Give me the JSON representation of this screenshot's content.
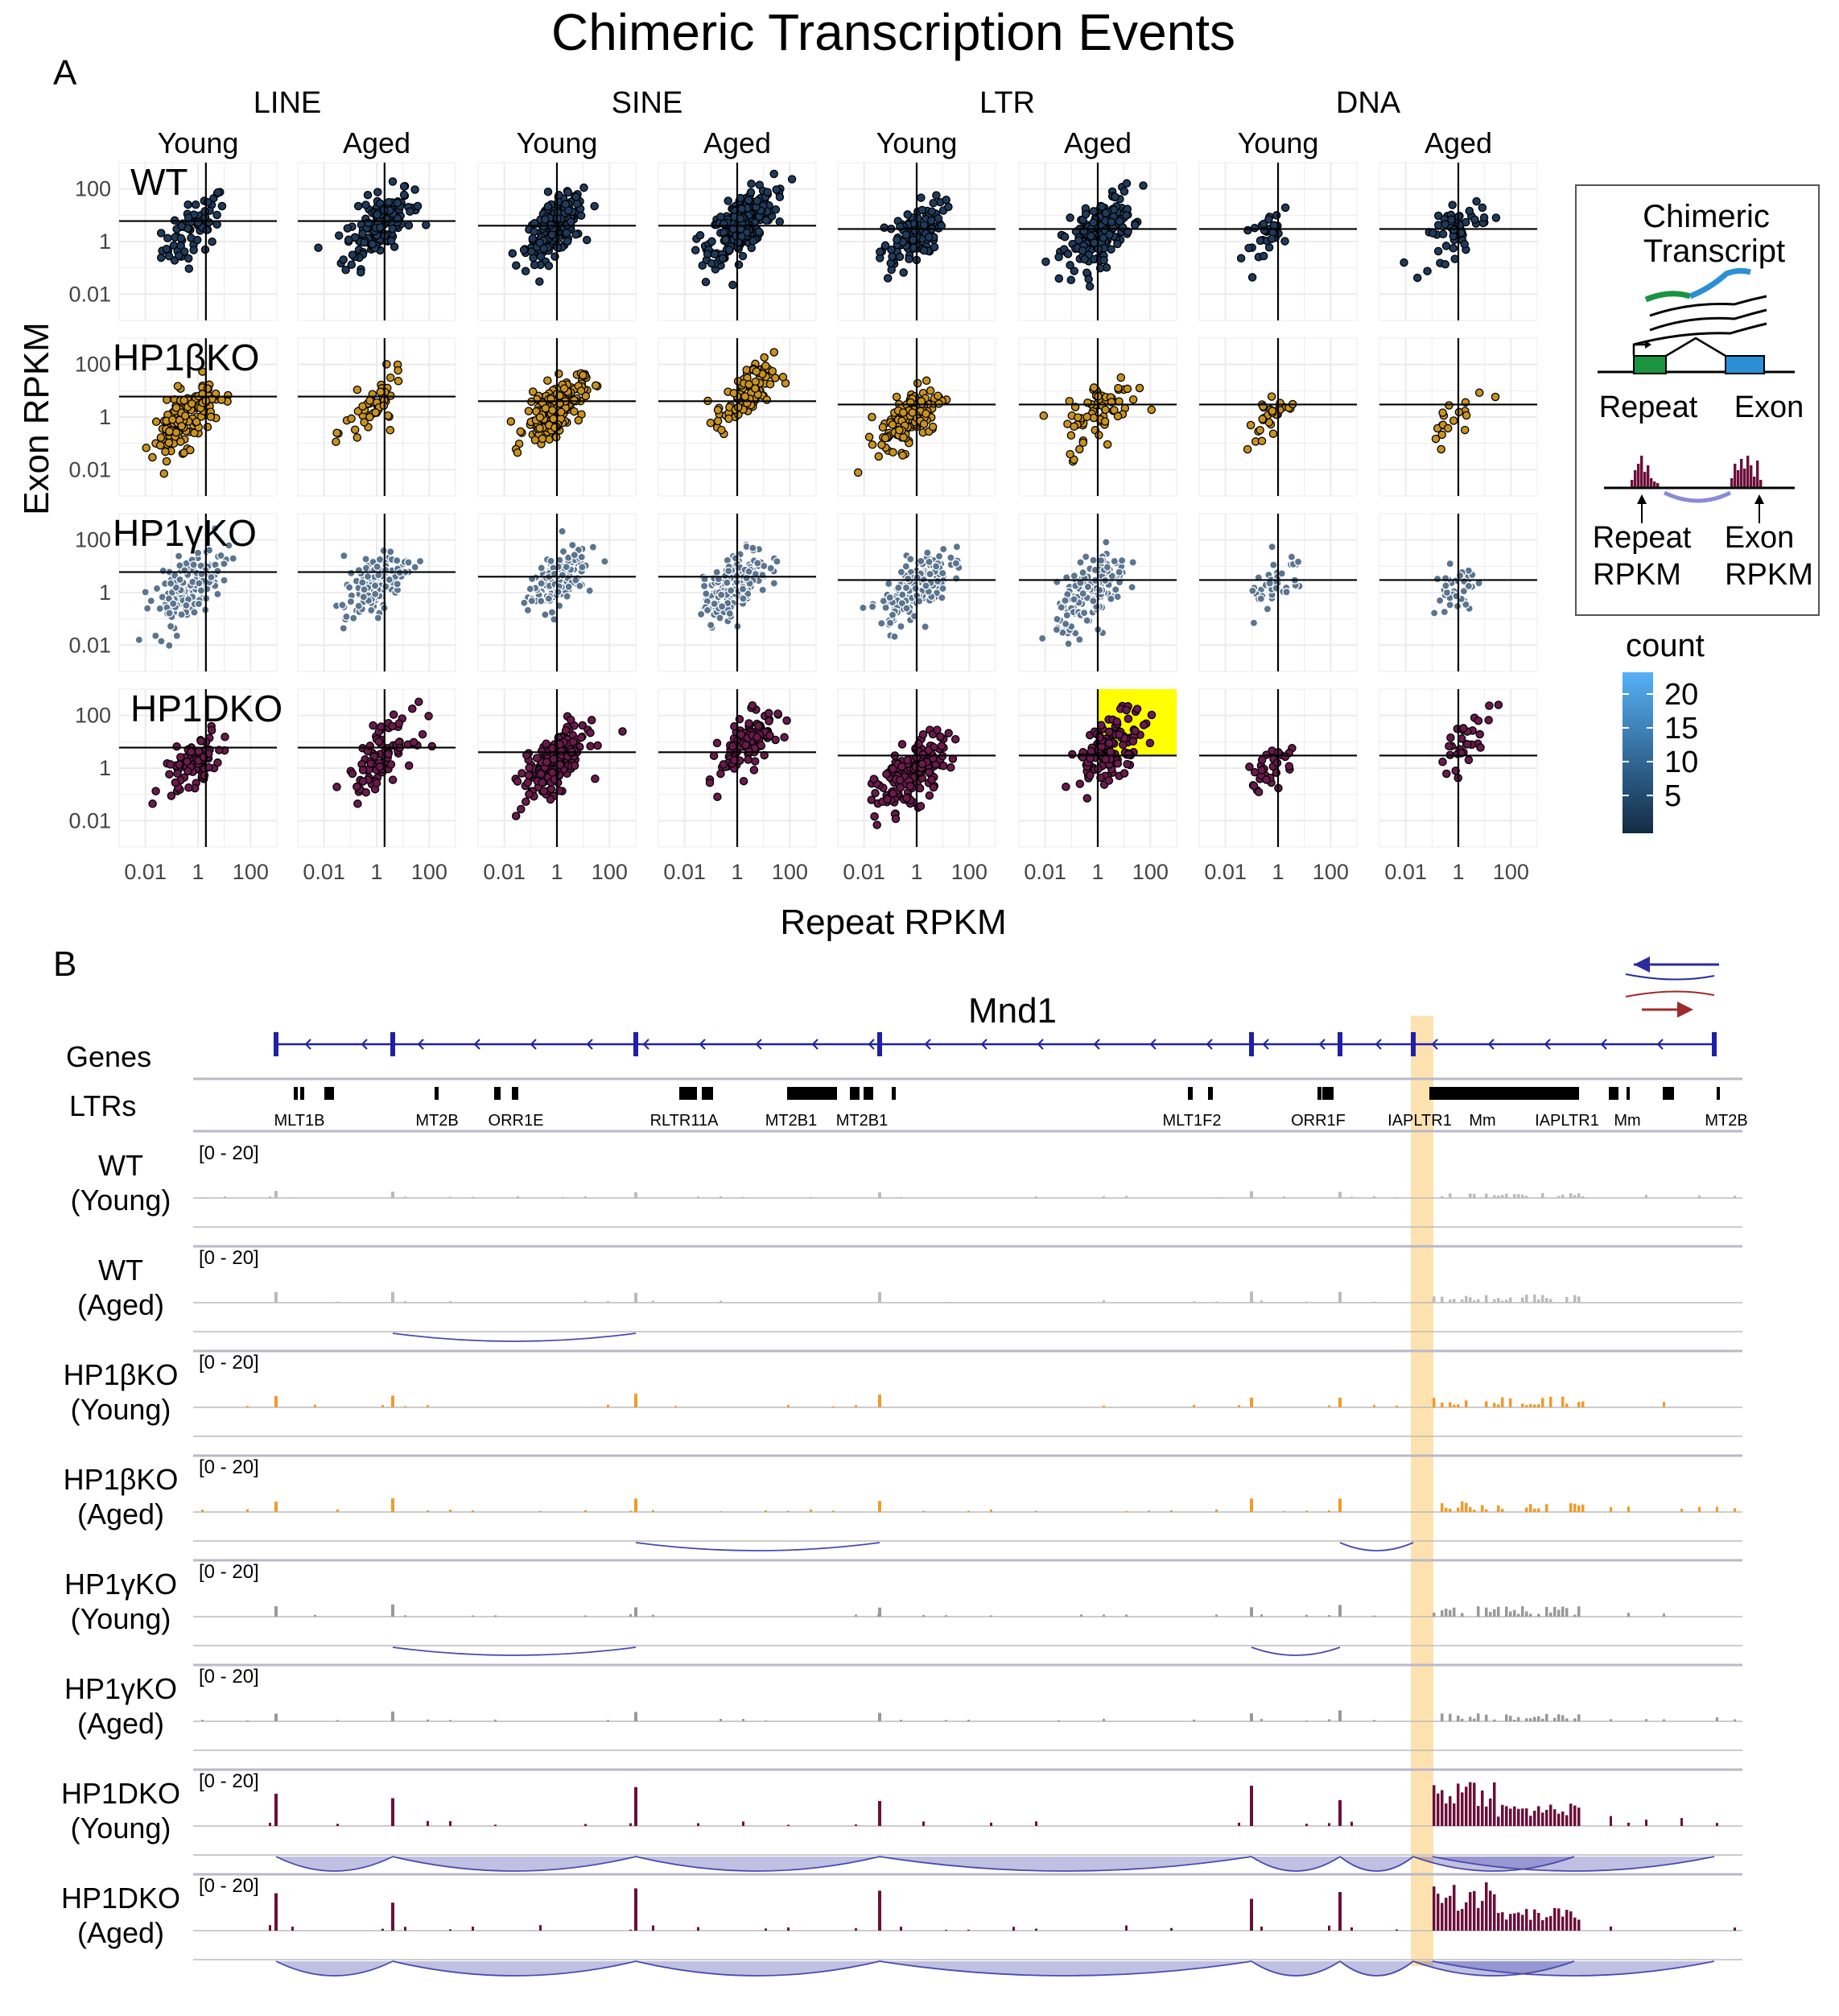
{
  "title": "Chimeric Transcription Events",
  "panel_a": {
    "label": "A",
    "ylabel": "Exon RPKM",
    "xlabel": "Repeat RPKM",
    "repeat_classes": [
      "LINE",
      "SINE",
      "LTR",
      "DNA"
    ],
    "ages": [
      "Young",
      "Aged"
    ],
    "genotypes": [
      "WT",
      "HP1βKO",
      "HP1γKO",
      "HP1DKO"
    ],
    "axis_ticks": [
      "0.01",
      "1",
      "100"
    ],
    "legend": {
      "title": "count",
      "ticks": [
        "20",
        "15",
        "10",
        "5"
      ]
    },
    "inset": {
      "title_line1": "Chimeric",
      "title_line2": "Transcript",
      "repeat_label": "Repeat",
      "exon_label": "Exon",
      "repeat_rpkm_line1": "Repeat",
      "repeat_rpkm_line2": "RPKM",
      "exon_rpkm_line1": "Exon",
      "exon_rpkm_line2": "RPKM"
    },
    "highlight": {
      "genotype": "HP1DKO",
      "class": "LTR",
      "age": "Aged",
      "color": "#ffff00"
    }
  },
  "chart_data": {
    "type": "scatter",
    "x_scale": "log10",
    "y_scale": "log10",
    "xlim": [
      0.001,
      1000
    ],
    "ylim": [
      0.001,
      1000
    ],
    "facets": [
      {
        "genotype": "WT",
        "class": "LINE",
        "age": "Young",
        "n": 70,
        "cx": 0.7,
        "cy": 3,
        "spread": 0.55,
        "hline": 6,
        "vline": 2
      },
      {
        "genotype": "WT",
        "class": "LINE",
        "age": "Aged",
        "n": 150,
        "cx": 1.2,
        "cy": 4,
        "spread": 0.6,
        "hline": 6,
        "vline": 2
      },
      {
        "genotype": "WT",
        "class": "SINE",
        "age": "Young",
        "n": 220,
        "cx": 0.8,
        "cy": 3,
        "spread": 0.5,
        "hline": 4,
        "vline": 1
      },
      {
        "genotype": "WT",
        "class": "SINE",
        "age": "Aged",
        "n": 280,
        "cx": 1.5,
        "cy": 5,
        "spread": 0.55,
        "hline": 4,
        "vline": 1
      },
      {
        "genotype": "WT",
        "class": "LTR",
        "age": "Young",
        "n": 110,
        "cx": 0.6,
        "cy": 1.5,
        "spread": 0.55,
        "hline": 3,
        "vline": 1
      },
      {
        "genotype": "WT",
        "class": "LTR",
        "age": "Aged",
        "n": 200,
        "cx": 1,
        "cy": 2,
        "spread": 0.6,
        "hline": 3,
        "vline": 1
      },
      {
        "genotype": "WT",
        "class": "DNA",
        "age": "Young",
        "n": 30,
        "cx": 0.5,
        "cy": 2,
        "spread": 0.45,
        "hline": 3,
        "vline": 1
      },
      {
        "genotype": "WT",
        "class": "DNA",
        "age": "Aged",
        "n": 50,
        "cx": 1,
        "cy": 3,
        "spread": 0.5,
        "hline": 3,
        "vline": 1
      },
      {
        "genotype": "HP1βKO",
        "class": "LINE",
        "age": "Young",
        "n": 150,
        "cx": 0.3,
        "cy": 0.8,
        "spread": 0.55,
        "hline": 6,
        "vline": 2
      },
      {
        "genotype": "HP1βKO",
        "class": "LINE",
        "age": "Aged",
        "n": 50,
        "cx": 0.8,
        "cy": 2,
        "spread": 0.5,
        "hline": 6,
        "vline": 2
      },
      {
        "genotype": "HP1βKO",
        "class": "SINE",
        "age": "Young",
        "n": 200,
        "cx": 0.8,
        "cy": 2,
        "spread": 0.5,
        "hline": 4,
        "vline": 1
      },
      {
        "genotype": "HP1βKO",
        "class": "SINE",
        "age": "Aged",
        "n": 100,
        "cx": 2,
        "cy": 6,
        "spread": 0.5,
        "hline": 4,
        "vline": 1
      },
      {
        "genotype": "HP1βKO",
        "class": "LTR",
        "age": "Young",
        "n": 130,
        "cx": 0.6,
        "cy": 1,
        "spread": 0.55,
        "hline": 3,
        "vline": 1
      },
      {
        "genotype": "HP1βKO",
        "class": "LTR",
        "age": "Aged",
        "n": 70,
        "cx": 1.5,
        "cy": 2,
        "spread": 0.6,
        "hline": 3,
        "vline": 1
      },
      {
        "genotype": "HP1βKO",
        "class": "DNA",
        "age": "Young",
        "n": 30,
        "cx": 0.5,
        "cy": 1,
        "spread": 0.45,
        "hline": 3,
        "vline": 1
      },
      {
        "genotype": "HP1βKO",
        "class": "DNA",
        "age": "Aged",
        "n": 18,
        "cx": 0.8,
        "cy": 1.5,
        "spread": 0.5,
        "hline": 3,
        "vline": 1
      },
      {
        "genotype": "HP1γKO",
        "class": "LINE",
        "age": "Young",
        "n": 160,
        "cx": 0.4,
        "cy": 1.5,
        "spread": 0.6,
        "hline": 6,
        "vline": 2
      },
      {
        "genotype": "HP1γKO",
        "class": "LINE",
        "age": "Aged",
        "n": 130,
        "cx": 0.9,
        "cy": 2,
        "spread": 0.55,
        "hline": 6,
        "vline": 2
      },
      {
        "genotype": "HP1γKO",
        "class": "SINE",
        "age": "Young",
        "n": 170,
        "cx": 1,
        "cy": 3,
        "spread": 0.5,
        "hline": 4,
        "vline": 1
      },
      {
        "genotype": "HP1γKO",
        "class": "SINE",
        "age": "Aged",
        "n": 200,
        "cx": 0.9,
        "cy": 2,
        "spread": 0.55,
        "hline": 4,
        "vline": 1
      },
      {
        "genotype": "HP1γKO",
        "class": "LTR",
        "age": "Young",
        "n": 160,
        "cx": 0.8,
        "cy": 1.5,
        "spread": 0.6,
        "hline": 3,
        "vline": 1
      },
      {
        "genotype": "HP1γKO",
        "class": "LTR",
        "age": "Aged",
        "n": 160,
        "cx": 0.6,
        "cy": 1,
        "spread": 0.6,
        "hline": 3,
        "vline": 1
      },
      {
        "genotype": "HP1γKO",
        "class": "DNA",
        "age": "Young",
        "n": 40,
        "cx": 1,
        "cy": 2,
        "spread": 0.5,
        "hline": 3,
        "vline": 1
      },
      {
        "genotype": "HP1γKO",
        "class": "DNA",
        "age": "Aged",
        "n": 40,
        "cx": 0.8,
        "cy": 1,
        "spread": 0.5,
        "hline": 3,
        "vline": 1
      },
      {
        "genotype": "HP1DKO",
        "class": "LINE",
        "age": "Young",
        "n": 80,
        "cx": 0.6,
        "cy": 1.5,
        "spread": 0.5,
        "hline": 6,
        "vline": 2
      },
      {
        "genotype": "HP1DKO",
        "class": "LINE",
        "age": "Aged",
        "n": 90,
        "cx": 1.5,
        "cy": 3,
        "spread": 0.55,
        "hline": 6,
        "vline": 2
      },
      {
        "genotype": "HP1DKO",
        "class": "SINE",
        "age": "Young",
        "n": 210,
        "cx": 0.8,
        "cy": 1.5,
        "spread": 0.55,
        "hline": 4,
        "vline": 1
      },
      {
        "genotype": "HP1DKO",
        "class": "SINE",
        "age": "Aged",
        "n": 120,
        "cx": 3,
        "cy": 10,
        "spread": 0.5,
        "hline": 4,
        "vline": 1
      },
      {
        "genotype": "HP1DKO",
        "class": "LTR",
        "age": "Young",
        "n": 170,
        "cx": 0.6,
        "cy": 0.5,
        "spread": 0.6,
        "hline": 3,
        "vline": 1
      },
      {
        "genotype": "HP1DKO",
        "class": "LTR",
        "age": "Aged",
        "n": 130,
        "cx": 3,
        "cy": 6,
        "spread": 0.6,
        "hline": 3,
        "vline": 1
      },
      {
        "genotype": "HP1DKO",
        "class": "DNA",
        "age": "Young",
        "n": 30,
        "cx": 0.5,
        "cy": 1,
        "spread": 0.45,
        "hline": 3,
        "vline": 1
      },
      {
        "genotype": "HP1DKO",
        "class": "DNA",
        "age": "Aged",
        "n": 30,
        "cx": 2,
        "cy": 10,
        "spread": 0.45,
        "hline": 3,
        "vline": 1
      }
    ],
    "colors": {
      "WT": {
        "fill": "#1f3b5c",
        "stroke": "#000000"
      },
      "HP1βKO": {
        "fill": "#c8921e",
        "stroke": "#000000"
      },
      "HP1γKO": {
        "fill": "#5b7590",
        "stroke": "#ffffff"
      },
      "HP1DKO": {
        "fill": "#6b1a4d",
        "stroke": "#000000"
      }
    }
  },
  "panel_b": {
    "label": "B",
    "gene_name": "Mnd1",
    "genes_label": "Genes",
    "ltrs_label": "LTRs",
    "ltr_names": [
      "MLT1B",
      "MT2B",
      "ORR1E",
      "RLTR11A",
      "MT2B1",
      "MT2B1",
      "MLT1F2",
      "ORR1F",
      "IAPLTR1",
      "Mm",
      "IAPLTR1",
      "Mm",
      "MT2B"
    ],
    "scale_label": "[0 - 20]",
    "tracks": [
      {
        "line1": "WT",
        "line2": "(Young)",
        "color": "#bbbbbb",
        "level": 0.08
      },
      {
        "line1": "WT",
        "line2": "(Aged)",
        "color": "#bbbbbb",
        "level": 0.15
      },
      {
        "line1": "HP1βKO",
        "line2": "(Young)",
        "color": "#f29a2a",
        "level": 0.2
      },
      {
        "line1": "HP1βKO",
        "line2": "(Aged)",
        "color": "#f29a2a",
        "level": 0.2
      },
      {
        "line1": "HP1γKO",
        "line2": "(Young)",
        "color": "#999999",
        "level": 0.2
      },
      {
        "line1": "HP1γKO",
        "line2": "(Aged)",
        "color": "#999999",
        "level": 0.15
      },
      {
        "line1": "HP1DKO",
        "line2": "(Young)",
        "color": "#6b0f3a",
        "level": 0.7
      },
      {
        "line1": "HP1DKO",
        "line2": "(Aged)",
        "color": "#6b0f3a",
        "level": 0.8
      }
    ],
    "highlight_color": "#fde2b0",
    "arrow_colors": {
      "top": "#2b2b9e",
      "bottom": "#9e2b2b"
    }
  }
}
